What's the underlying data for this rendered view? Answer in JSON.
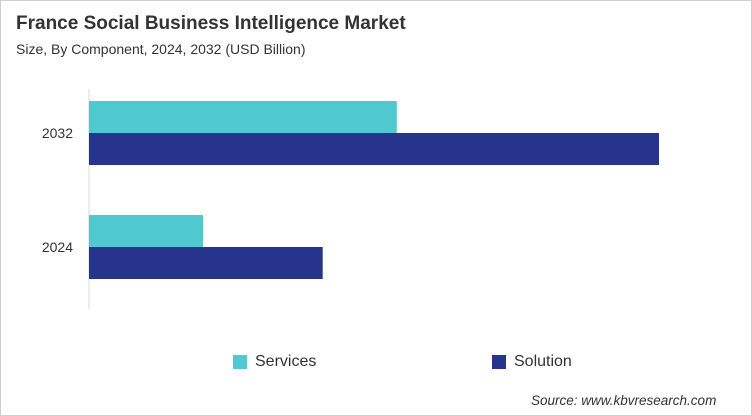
{
  "chart_data": {
    "type": "bar",
    "orientation": "horizontal",
    "title": "France Social Business Intelligence Market",
    "subtitle": "Size, By Component, 2024, 2032 (USD Billion)",
    "categories": [
      "2032",
      "2024"
    ],
    "series": [
      {
        "name": "Services",
        "color": "#4fc8d0",
        "values": [
          0.54,
          0.2
        ]
      },
      {
        "name": "Solution",
        "color": "#27348b",
        "values": [
          1.0,
          0.41
        ]
      }
    ],
    "xlim": [
      0,
      1.0
    ],
    "grid": false,
    "legend_position": "bottom",
    "source": "Source: www.kbvresearch.com"
  }
}
